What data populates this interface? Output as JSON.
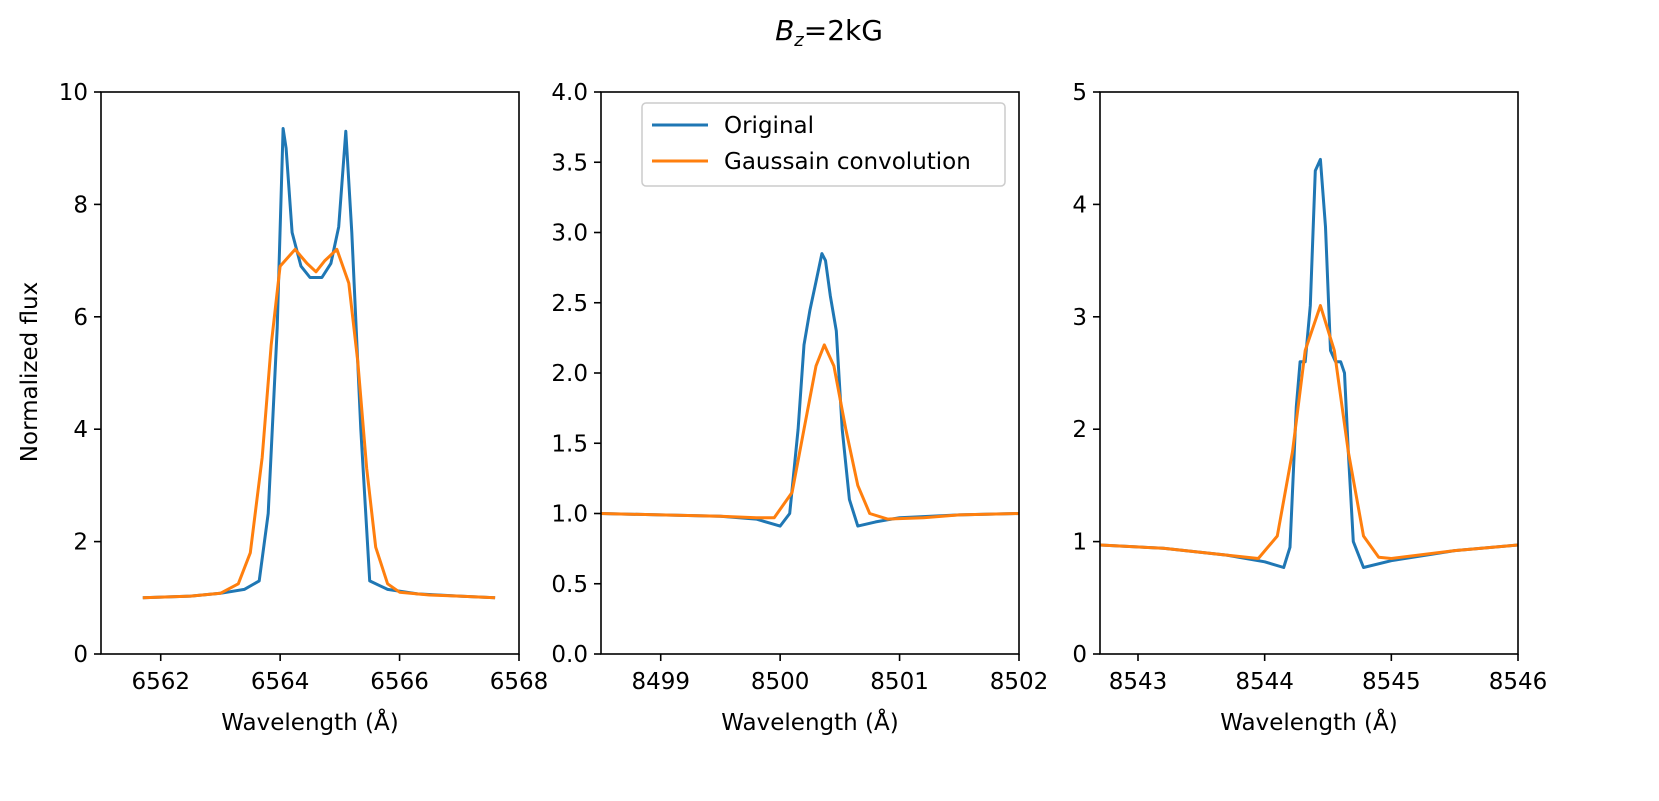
{
  "chart_data": {
    "type": "line",
    "suptitle": {
      "base": "B",
      "subscript": "z",
      "rest": "=2kG"
    },
    "colors": {
      "original": "#1f77b4",
      "gaussian": "#ff7f0e",
      "axis": "#000000",
      "background": "#ffffff"
    },
    "legend": {
      "location": "upper-center of middle panel",
      "entries": [
        "Original",
        "Gaussain convolution"
      ]
    },
    "panels": [
      {
        "ylabel": "Normalized flux",
        "xlabel": "Wavelength (Å)",
        "xlim": [
          6561,
          6568
        ],
        "ylim": [
          0,
          10
        ],
        "xticks": [
          6562,
          6564,
          6566,
          6568
        ],
        "xtick_labels": [
          "6562",
          "6564",
          "6566",
          "6568"
        ],
        "yticks": [
          0,
          2,
          4,
          6,
          8,
          10
        ],
        "ytick_labels": [
          "0",
          "2",
          "4",
          "6",
          "8",
          "10"
        ],
        "series": [
          {
            "name": "Original",
            "x": [
              6561.7,
              6562.5,
              6563.0,
              6563.4,
              6563.65,
              6563.8,
              6563.95,
              6564.05,
              6564.1,
              6564.2,
              6564.35,
              6564.5,
              6564.7,
              6564.85,
              6564.98,
              6565.1,
              6565.2,
              6565.35,
              6565.5,
              6565.8,
              6566.3,
              6567.0,
              6567.6
            ],
            "y": [
              1.0,
              1.03,
              1.08,
              1.15,
              1.3,
              2.5,
              5.8,
              9.35,
              9.0,
              7.5,
              6.9,
              6.7,
              6.7,
              6.95,
              7.6,
              9.3,
              7.5,
              4.0,
              1.3,
              1.15,
              1.07,
              1.03,
              1.0
            ]
          },
          {
            "name": "Gaussain convolution",
            "x": [
              6561.7,
              6562.5,
              6563.0,
              6563.3,
              6563.5,
              6563.7,
              6563.85,
              6564.0,
              6564.25,
              6564.45,
              6564.6,
              6564.75,
              6564.95,
              6565.15,
              6565.3,
              6565.45,
              6565.6,
              6565.8,
              6566.0,
              6566.5,
              6567.0,
              6567.6
            ],
            "y": [
              1.0,
              1.03,
              1.08,
              1.25,
              1.8,
              3.5,
              5.5,
              6.9,
              7.2,
              6.95,
              6.8,
              7.0,
              7.2,
              6.6,
              5.2,
              3.3,
              1.9,
              1.25,
              1.1,
              1.05,
              1.03,
              1.0
            ]
          }
        ]
      },
      {
        "ylabel": "",
        "xlabel": "Wavelength (Å)",
        "xlim": [
          8498.5,
          8502
        ],
        "ylim": [
          0,
          4
        ],
        "xticks": [
          8499,
          8500,
          8501,
          8502
        ],
        "xtick_labels": [
          "8499",
          "8500",
          "8501",
          "8502"
        ],
        "yticks": [
          0,
          0.5,
          1,
          1.5,
          2,
          2.5,
          3,
          3.5,
          4
        ],
        "ytick_labels": [
          "0.0",
          "0.5",
          "1.0",
          "1.5",
          "2.0",
          "2.5",
          "3.0",
          "3.5",
          "4.0"
        ],
        "series": [
          {
            "name": "Original",
            "x": [
              8498.5,
              8499.0,
              8499.5,
              8499.8,
              8500.0,
              8500.08,
              8500.15,
              8500.2,
              8500.25,
              8500.3,
              8500.35,
              8500.38,
              8500.42,
              8500.47,
              8500.52,
              8500.58,
              8500.65,
              8500.8,
              8501.0,
              8501.5,
              8502.0
            ],
            "y": [
              1.0,
              0.99,
              0.98,
              0.96,
              0.91,
              1.0,
              1.6,
              2.2,
              2.45,
              2.65,
              2.85,
              2.8,
              2.55,
              2.3,
              1.6,
              1.1,
              0.91,
              0.94,
              0.97,
              0.99,
              1.0
            ]
          },
          {
            "name": "Gaussain convolution",
            "x": [
              8498.5,
              8499.0,
              8499.5,
              8499.8,
              8499.95,
              8500.1,
              8500.2,
              8500.3,
              8500.37,
              8500.45,
              8500.55,
              8500.65,
              8500.75,
              8500.9,
              8501.2,
              8501.5,
              8502.0
            ],
            "y": [
              1.0,
              0.99,
              0.98,
              0.97,
              0.97,
              1.15,
              1.6,
              2.05,
              2.2,
              2.05,
              1.6,
              1.2,
              1.0,
              0.96,
              0.97,
              0.99,
              1.0
            ]
          }
        ]
      },
      {
        "ylabel": "",
        "xlabel": "Wavelength (Å)",
        "xlim": [
          8542.7,
          8546
        ],
        "ylim": [
          0,
          5
        ],
        "xticks": [
          8543,
          8544,
          8545,
          8546
        ],
        "xtick_labels": [
          "8543",
          "8544",
          "8545",
          "8546"
        ],
        "yticks": [
          0,
          1,
          2,
          3,
          4,
          5
        ],
        "ytick_labels": [
          "0",
          "1",
          "2",
          "3",
          "4",
          "5"
        ],
        "series": [
          {
            "name": "Original",
            "x": [
              8542.7,
              8543.2,
              8543.7,
              8544.0,
              8544.15,
              8544.2,
              8544.25,
              8544.28,
              8544.32,
              8544.36,
              8544.4,
              8544.44,
              8544.48,
              8544.52,
              8544.56,
              8544.6,
              8544.63,
              8544.66,
              8544.7,
              8544.78,
              8545.0,
              8545.5,
              8546.0
            ],
            "y": [
              0.97,
              0.94,
              0.88,
              0.82,
              0.77,
              0.95,
              2.2,
              2.6,
              2.6,
              3.1,
              4.3,
              4.4,
              3.8,
              2.7,
              2.6,
              2.6,
              2.5,
              1.8,
              1.0,
              0.77,
              0.83,
              0.92,
              0.97
            ],
            "x_note": "8544.44 peak"
          },
          {
            "name": "Gaussain convolution",
            "x": [
              8542.7,
              8543.2,
              8543.7,
              8543.95,
              8544.1,
              8544.22,
              8544.32,
              8544.44,
              8544.55,
              8544.66,
              8544.78,
              8544.9,
              8545.0,
              8545.5,
              8546.0
            ],
            "y": [
              0.97,
              0.94,
              0.88,
              0.85,
              1.05,
              1.8,
              2.7,
              3.1,
              2.7,
              1.8,
              1.05,
              0.86,
              0.85,
              0.92,
              0.97
            ]
          }
        ]
      }
    ]
  }
}
